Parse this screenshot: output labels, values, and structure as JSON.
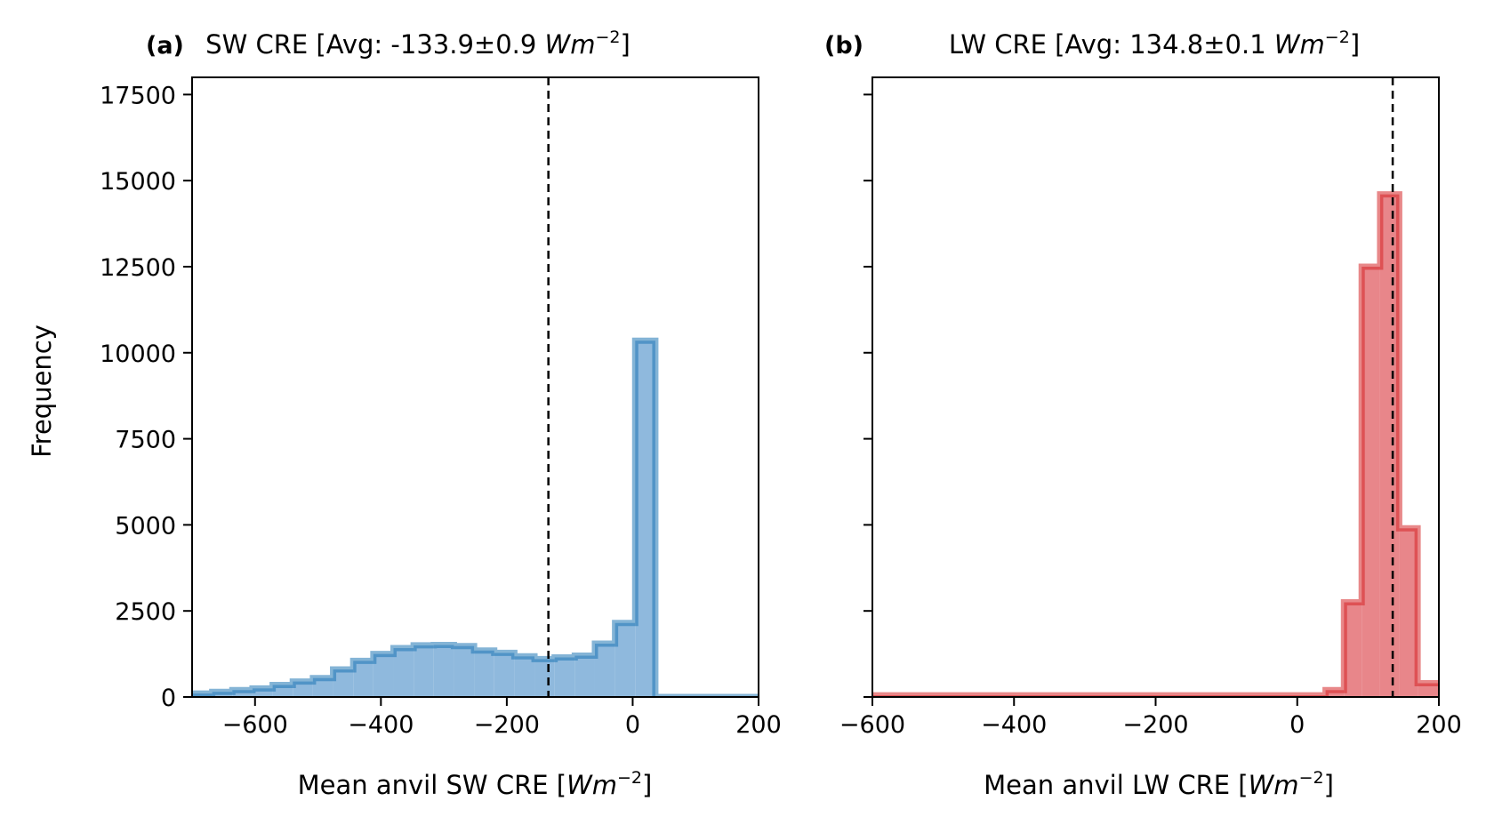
{
  "chart_data": [
    {
      "type": "histogram",
      "panel_label": "(a)",
      "title_prefix": "SW CRE [Avg: -133.9±0.9 ",
      "title_unit_base": "Wm",
      "title_unit_exp": "−2",
      "title_suffix": "]",
      "xlabel_prefix": "Mean anvil SW CRE [",
      "xlabel_unit_base": "Wm",
      "xlabel_unit_exp": "−2",
      "xlabel_suffix": "]",
      "ylabel": "Frequency",
      "xlim": [
        -700,
        200
      ],
      "ylim": [
        0,
        18000
      ],
      "xticks": [
        -600,
        -400,
        -200,
        0,
        200
      ],
      "xtick_labels": [
        "−600",
        "−400",
        "−200",
        "0",
        "200"
      ],
      "yticks": [
        0,
        2500,
        5000,
        7500,
        10000,
        12500,
        15000,
        17500
      ],
      "ytick_labels": [
        "0",
        "2500",
        "5000",
        "7500",
        "10000",
        "12500",
        "15000",
        "17500"
      ],
      "show_ytick_labels": true,
      "mean_line": -133.9,
      "color": "#1f77b4",
      "fill_color": "#8fb9dd",
      "bin_edges": [
        -700,
        -668,
        -636,
        -604,
        -572,
        -540,
        -508,
        -476,
        -444,
        -412,
        -380,
        -348,
        -316,
        -284,
        -252,
        -220,
        -188,
        -156,
        -124,
        -92,
        -60,
        -28,
        4,
        36,
        68,
        100,
        132,
        164,
        200
      ],
      "counts": [
        100,
        150,
        200,
        250,
        350,
        450,
        550,
        800,
        1050,
        1250,
        1420,
        1500,
        1510,
        1480,
        1350,
        1280,
        1180,
        1100,
        1150,
        1200,
        1550,
        2150,
        10350,
        0,
        0,
        0,
        0,
        0
      ]
    },
    {
      "type": "histogram",
      "panel_label": "(b)",
      "title_prefix": "LW CRE [Avg: 134.8±0.1 ",
      "title_unit_base": "Wm",
      "title_unit_exp": "−2",
      "title_suffix": "]",
      "xlabel_prefix": "Mean anvil LW CRE [",
      "xlabel_unit_base": "Wm",
      "xlabel_unit_exp": "−2",
      "xlabel_suffix": "]",
      "ylabel": "",
      "xlim": [
        -600,
        200
      ],
      "ylim": [
        0,
        18000
      ],
      "xticks": [
        -600,
        -400,
        -200,
        0,
        200
      ],
      "xtick_labels": [
        "−600",
        "−400",
        "−200",
        "0",
        "200"
      ],
      "yticks": [
        0,
        2500,
        5000,
        7500,
        10000,
        12500,
        15000,
        17500
      ],
      "ytick_labels": [
        "0",
        "2500",
        "5000",
        "7500",
        "10000",
        "12500",
        "15000",
        "17500"
      ],
      "show_ytick_labels": false,
      "mean_line": 134.8,
      "color": "#d62728",
      "fill_color": "#e8868a",
      "bin_edges": [
        -600,
        40,
        66,
        91,
        117,
        144,
        170,
        200
      ],
      "counts": [
        50,
        200,
        2750,
        12500,
        14600,
        4900,
        400
      ]
    }
  ]
}
